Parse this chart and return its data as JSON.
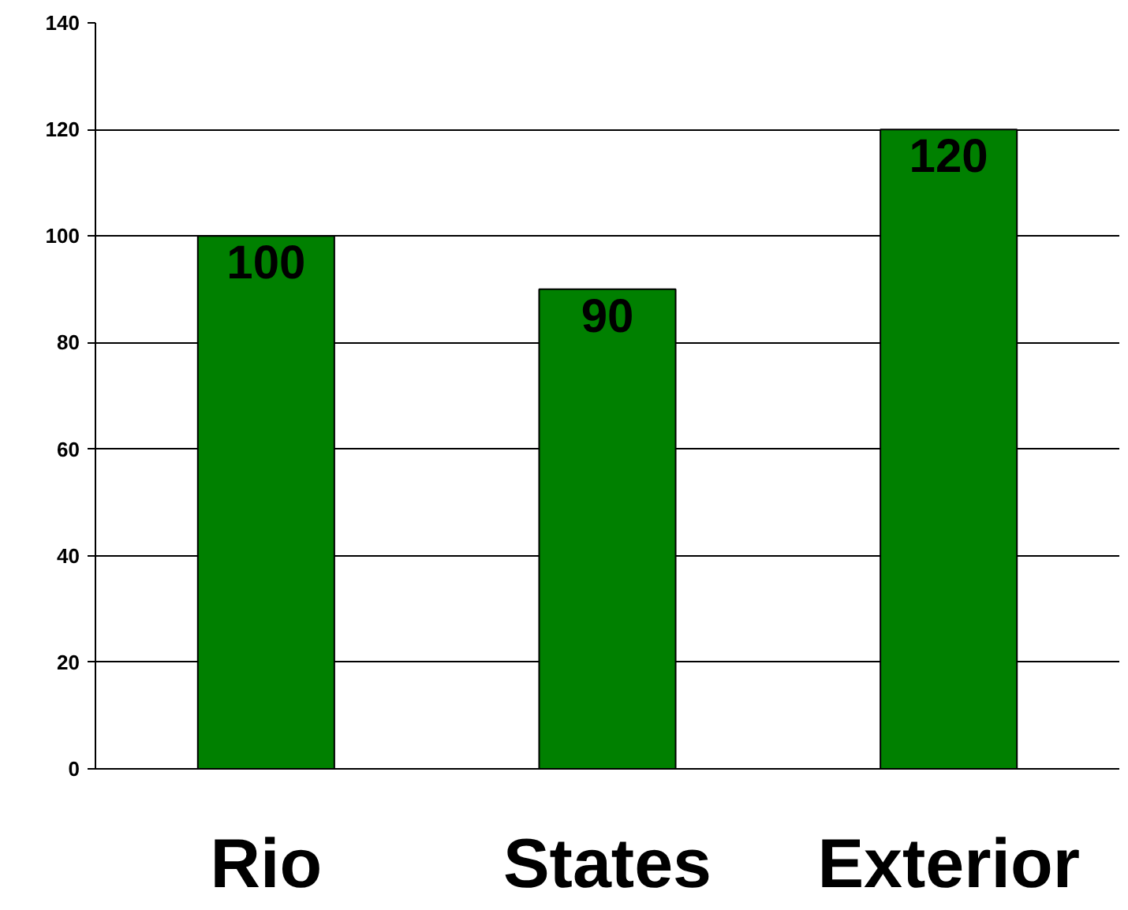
{
  "chart_data": {
    "type": "bar",
    "categories": [
      "Rio",
      "States",
      "Exterior"
    ],
    "values": [
      100,
      90,
      120
    ],
    "color": "#008000",
    "ylim": [
      0,
      140
    ],
    "yticks": [
      0,
      20,
      40,
      60,
      80,
      100,
      120,
      140
    ],
    "grid": "y",
    "data_labels": true
  }
}
